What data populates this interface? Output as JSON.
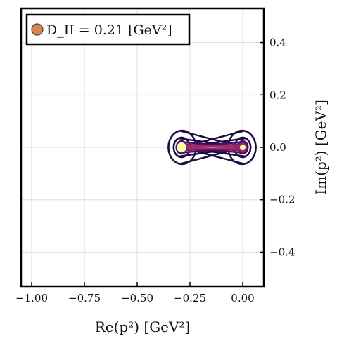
{
  "chart_data": {
    "type": "contour",
    "xlabel": "Re(p²) [GeV²]",
    "ylabel": "Im(p²) [GeV²]",
    "xlim": [
      -1.05,
      0.1
    ],
    "ylim": [
      -0.53,
      0.53
    ],
    "xticks": [
      -1.0,
      -0.75,
      -0.5,
      -0.25,
      0.0
    ],
    "xtick_labels": [
      "−1.00",
      "−0.75",
      "−0.50",
      "−0.25",
      "0.00"
    ],
    "yticks": [
      -0.4,
      -0.2,
      0.0,
      0.2,
      0.4
    ],
    "ytick_labels": [
      "−0.4",
      "−0.2",
      "0.0",
      "0.2",
      "0.4"
    ],
    "grid": true,
    "yaxis_side": "right",
    "legend": {
      "placement": "top-left",
      "entries": [
        {
          "label": "D_II = 0.21 [GeV²]",
          "color": "#d9854d"
        }
      ]
    },
    "poles": [
      {
        "re": -0.29,
        "im": 0.0
      },
      {
        "re": 0.0,
        "im": 0.0
      }
    ],
    "colormap": [
      "#1b0c41",
      "#4a0c6b",
      "#781c6d",
      "#a52c60",
      "#cf4446",
      "#ed6925",
      "#fb9b06",
      "#f7d13d",
      "#fcffa4"
    ]
  }
}
